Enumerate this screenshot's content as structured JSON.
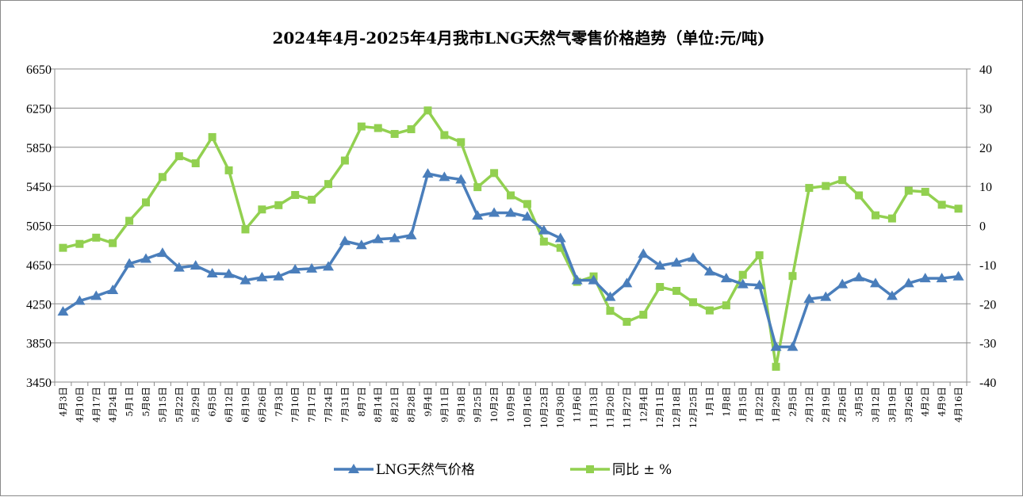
{
  "chart_data": {
    "type": "line",
    "title": "2024年4月-2025年4月我市LNG天然气零售价格趋势（单位:元/吨)",
    "x": [
      "4月3日",
      "4月10日",
      "4月17日",
      "4月24日",
      "5月1日",
      "5月8日",
      "5月15日",
      "5月22日",
      "5月29日",
      "6月5日",
      "6月12日",
      "6月19日",
      "6月26日",
      "7月3日",
      "7月10日",
      "7月17日",
      "7月24日",
      "7月31日",
      "8月7日",
      "8月14日",
      "8月21日",
      "8月28日",
      "9月4日",
      "9月11日",
      "9月18日",
      "9月25日",
      "10月2日",
      "10月9日",
      "10月16日",
      "10月23日",
      "10月30日",
      "11月6日",
      "11月13日",
      "11月20日",
      "11月27日",
      "12月4日",
      "12月11日",
      "12月18日",
      "12月25日",
      "1月1日",
      "1月8日",
      "1月15日",
      "1月22日",
      "1月29日",
      "2月5日",
      "2月12日",
      "2月19日",
      "2月26日",
      "3月5日",
      "3月12日",
      "3月19日",
      "3月26日",
      "4月2日",
      "4月9日",
      "4月16日"
    ],
    "y_left": {
      "min": 3450,
      "max": 6650,
      "ticks": [
        3450,
        3850,
        4250,
        4650,
        5050,
        5450,
        5850,
        6250,
        6650
      ]
    },
    "y_right": {
      "min": -40,
      "max": 40,
      "ticks": [
        -40,
        -30,
        -20,
        -10,
        0,
        10,
        20,
        30,
        40
      ]
    },
    "grid": "horizontal",
    "legend_position": "bottom",
    "series": [
      {
        "name": "LNG天然气价格",
        "axis": "left",
        "color": "#4a7ebb",
        "marker": "triangle",
        "values": [
          4170,
          4280,
          4330,
          4390,
          4660,
          4710,
          4770,
          4620,
          4640,
          4560,
          4555,
          4490,
          4520,
          4530,
          4600,
          4610,
          4630,
          4890,
          4850,
          4910,
          4920,
          4950,
          5580,
          5545,
          5520,
          5150,
          5180,
          5180,
          5140,
          5000,
          4920,
          4490,
          4490,
          4320,
          4460,
          4760,
          4640,
          4670,
          4720,
          4580,
          4510,
          4450,
          4440,
          3810,
          3810,
          4300,
          4320,
          4450,
          4520,
          4460,
          4330,
          4460,
          4510,
          4510,
          4530
        ]
      },
      {
        "name": "同比 ± %",
        "axis": "right",
        "color": "#92d050",
        "marker": "square",
        "values": [
          -5.7,
          -4.7,
          -3.1,
          -4.5,
          1.2,
          5.9,
          12.4,
          17.7,
          15.9,
          22.6,
          14.1,
          -1.0,
          4.1,
          5.2,
          7.8,
          6.6,
          10.6,
          16.6,
          25.3,
          24.9,
          23.4,
          24.6,
          29.4,
          23.1,
          21.3,
          9.8,
          13.4,
          7.7,
          5.5,
          -4.1,
          -5.7,
          -14.4,
          -13.0,
          -21.8,
          -24.6,
          -22.8,
          -15.7,
          -16.7,
          -19.6,
          -21.7,
          -20.4,
          -12.6,
          -7.6,
          -36.1,
          -12.9,
          9.6,
          10.1,
          11.6,
          7.7,
          2.6,
          1.8,
          8.9,
          8.6,
          5.3,
          4.3
        ]
      }
    ]
  }
}
